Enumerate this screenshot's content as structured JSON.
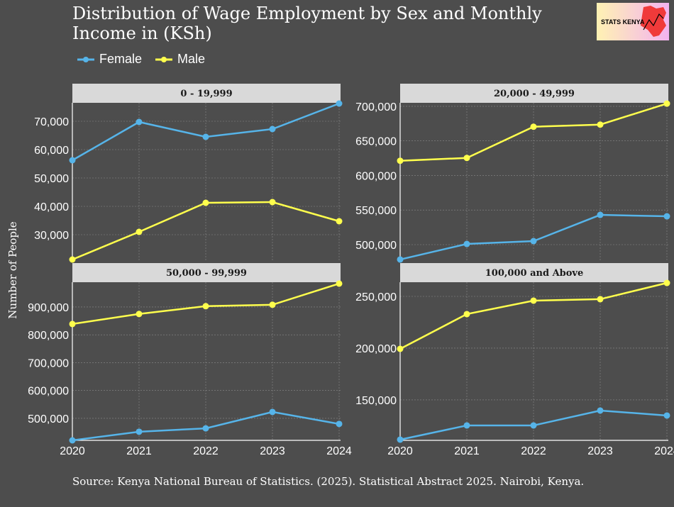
{
  "chart_data": {
    "type": "line",
    "title": "Distribution of Wage Employment by Sex and Monthly Income in (KSh)",
    "ylabel": "Number of People",
    "xlabel": "",
    "legend": {
      "placement": "top-left",
      "entries": [
        "Female",
        "Male"
      ]
    },
    "colors": {
      "Female": "#56B4E9",
      "Male": "#FFFF4D"
    },
    "grid": true,
    "x": [
      2020,
      2021,
      2022,
      2023,
      2024
    ],
    "x_ticks": [
      "2020",
      "2021",
      "2022",
      "2023",
      "2024"
    ],
    "panels": [
      {
        "label": "0 - 19,999",
        "ylim": [
          20750,
          76500
        ],
        "y_ticks": [
          30000,
          40000,
          50000,
          60000,
          70000
        ],
        "y_tick_labels": [
          "30,000",
          "40,000",
          "50,000",
          "60,000",
          "70,000"
        ],
        "series": [
          {
            "name": "Female",
            "values": [
              56250,
              69750,
              64500,
              67250,
              76250
            ]
          },
          {
            "name": "Male",
            "values": [
              21250,
              31000,
              41250,
              41500,
              34750
            ]
          }
        ]
      },
      {
        "label": "20,000 - 49,999",
        "ylim": [
          476400,
          705100
        ],
        "y_ticks": [
          500000,
          550000,
          600000,
          650000,
          700000
        ],
        "y_tick_labels": [
          "500,000",
          "550,000",
          "600,000",
          "650,000",
          "700,000"
        ],
        "series": [
          {
            "name": "Female",
            "values": [
              478500,
              501000,
              505100,
              543000,
              541000
            ]
          },
          {
            "name": "Male",
            "values": [
              621300,
              625400,
              670500,
              673600,
              704000
            ]
          }
        ]
      },
      {
        "label": "50,000 - 99,999",
        "ylim": [
          421000,
          989000
        ],
        "y_ticks": [
          500000,
          600000,
          700000,
          800000,
          900000
        ],
        "y_tick_labels": [
          "500,000",
          "600,000",
          "700,000",
          "800,000",
          "900,000"
        ],
        "series": [
          {
            "name": "Female",
            "values": [
              421000,
              452000,
              464000,
              523000,
              480000
            ]
          },
          {
            "name": "Male",
            "values": [
              839000,
              875000,
              903000,
              908000,
              984000
            ]
          }
        ]
      },
      {
        "label": "100,000 and Above",
        "ylim": [
          110900,
          263700
        ],
        "y_ticks": [
          150000,
          200000,
          250000
        ],
        "y_tick_labels": [
          "150,000",
          "200,000",
          "250,000"
        ],
        "series": [
          {
            "name": "Female",
            "values": [
              111600,
              125300,
              125300,
              139700,
              134900
            ]
          },
          {
            "name": "Male",
            "values": [
              199300,
              232900,
              245900,
              247300,
              263000
            ]
          }
        ]
      }
    ]
  },
  "source": "Source: Kenya National Bureau of Statistics. (2025). Statistical Abstract 2025. Nairobi, Kenya.",
  "logo": {
    "text": "STATS KENYA",
    "icon": "kenya-map-chart-icon"
  }
}
